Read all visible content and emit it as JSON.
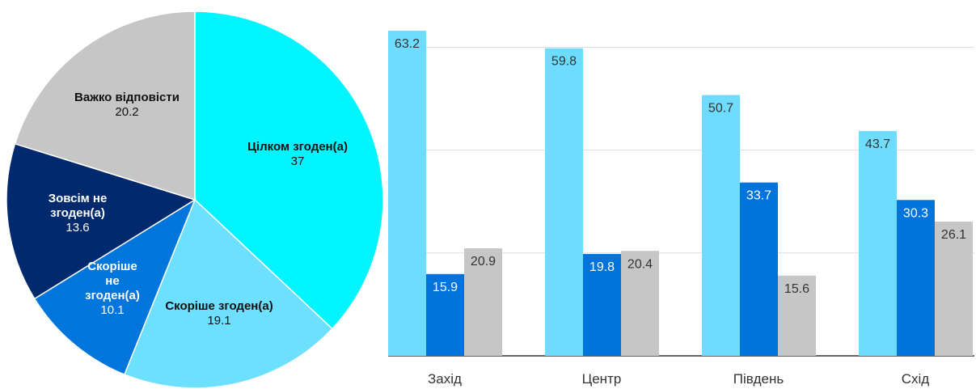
{
  "chart_data": [
    {
      "type": "pie",
      "slices": [
        {
          "label": "Цілком згоден(а)",
          "value": 37,
          "color": "#00F5FF",
          "text_color": "#111111"
        },
        {
          "label": "Скоріше згоден(а)",
          "value": 19.1,
          "color": "#6EE0FF",
          "text_color": "#111111"
        },
        {
          "label": "Скоріше не згоден(а)",
          "value": 10.1,
          "color": "#0075DC",
          "text_color": "#ffffff"
        },
        {
          "label": "Зовсім не згоден(а)",
          "value": 13.6,
          "color": "#00296E",
          "text_color": "#ffffff"
        },
        {
          "label": "Важко відповісти",
          "value": 20.2,
          "color": "#C6C6C6",
          "text_color": "#111111"
        }
      ]
    },
    {
      "type": "bar",
      "categories": [
        "Захід",
        "Центр",
        "Південь",
        "Схід"
      ],
      "series": [
        {
          "values": [
            63.2,
            59.8,
            50.7,
            43.7
          ],
          "color": "#6EDCFF"
        },
        {
          "values": [
            15.9,
            19.8,
            33.7,
            30.3
          ],
          "color": "#0073DC"
        },
        {
          "values": [
            20.9,
            20.4,
            15.6,
            26.1
          ],
          "color": "#C6C6C6"
        }
      ],
      "ylim": [
        0,
        75
      ],
      "grid": true
    }
  ]
}
